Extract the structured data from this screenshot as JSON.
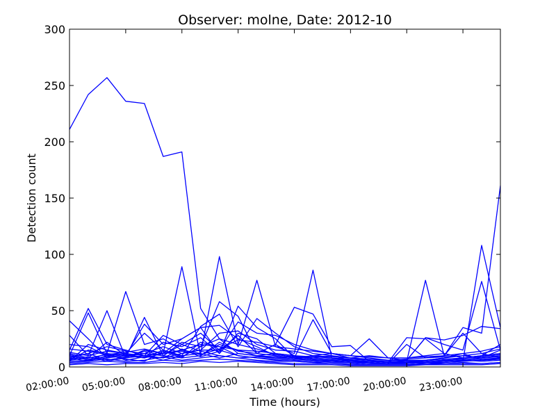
{
  "chart_data": {
    "type": "line",
    "title": "Observer: molne, Date: 2012-10",
    "xlabel": "Time (hours)",
    "ylabel": "Detection count",
    "ylim": [
      0,
      300
    ],
    "xlim": [
      2,
      25
    ],
    "y_ticks": [
      {
        "value": 0,
        "label": "0"
      },
      {
        "value": 50,
        "label": "50"
      },
      {
        "value": 100,
        "label": "100"
      },
      {
        "value": 150,
        "label": "150"
      },
      {
        "value": 200,
        "label": "200"
      },
      {
        "value": 250,
        "label": "250"
      },
      {
        "value": 300,
        "label": "300"
      }
    ],
    "x_ticks": [
      {
        "value": 2,
        "label": "02:00:00"
      },
      {
        "value": 5,
        "label": "05:00:00"
      },
      {
        "value": 8,
        "label": "08:00:00"
      },
      {
        "value": 11,
        "label": "11:00:00"
      },
      {
        "value": 14,
        "label": "14:00:00"
      },
      {
        "value": 17,
        "label": "17:00:00"
      },
      {
        "value": 20,
        "label": "20:00:00"
      },
      {
        "value": 23,
        "label": "23:00:00"
      }
    ],
    "x": [
      2,
      3,
      4,
      5,
      6,
      7,
      8,
      9,
      10,
      11,
      12,
      13,
      14,
      15,
      16,
      17,
      18,
      19,
      20,
      21,
      22,
      23,
      24,
      25
    ],
    "line_color": "#0000ff",
    "grid": false,
    "series": [
      {
        "values": [
          211,
          242,
          257,
          236,
          234,
          187,
          191,
          52,
          25,
          12,
          10,
          8,
          9,
          7,
          6,
          5,
          5,
          4,
          5,
          4,
          5,
          8,
          10,
          12
        ]
      },
      {
        "values": [
          8,
          5,
          10,
          12,
          8,
          12,
          89,
          10,
          20,
          15,
          10,
          12,
          8,
          6,
          5,
          4,
          3,
          3,
          4,
          3,
          4,
          5,
          108,
          35
        ]
      },
      {
        "values": [
          10,
          48,
          12,
          67,
          20,
          25,
          15,
          12,
          98,
          20,
          77,
          18,
          12,
          86,
          8,
          6,
          5,
          4,
          5,
          77,
          10,
          35,
          30,
          161
        ]
      },
      {
        "values": [
          28,
          10,
          50,
          8,
          44,
          10,
          22,
          18,
          58,
          45,
          12,
          20,
          53,
          47,
          18,
          19,
          5,
          4,
          6,
          26,
          24,
          28,
          36,
          34
        ]
      },
      {
        "values": [
          41,
          25,
          8,
          10,
          38,
          20,
          25,
          35,
          12,
          54,
          35,
          25,
          8,
          42,
          12,
          10,
          25,
          8,
          6,
          26,
          20,
          15,
          76,
          15
        ]
      },
      {
        "values": [
          15,
          52,
          20,
          15,
          10,
          28,
          20,
          30,
          15,
          40,
          30,
          28,
          20,
          15,
          12,
          10,
          8,
          6,
          6,
          6,
          8,
          10,
          8,
          15
        ]
      },
      {
        "values": [
          5,
          20,
          15,
          12,
          30,
          15,
          10,
          36,
          47,
          18,
          43,
          30,
          18,
          12,
          10,
          8,
          6,
          4,
          26,
          25,
          12,
          8,
          10,
          20
        ]
      },
      {
        "values": [
          20,
          18,
          10,
          8,
          15,
          12,
          25,
          35,
          37,
          25,
          18,
          10,
          8,
          10,
          8,
          5,
          4,
          3,
          20,
          8,
          10,
          30,
          12,
          8
        ]
      },
      {
        "values": [
          12,
          8,
          22,
          10,
          12,
          18,
          12,
          15,
          30,
          32,
          20,
          15,
          14,
          10,
          12,
          8,
          10,
          8,
          8,
          10,
          12,
          8,
          10,
          12
        ]
      },
      {
        "values": [
          6,
          15,
          12,
          10,
          8,
          22,
          18,
          26,
          12,
          30,
          25,
          12,
          10,
          8,
          10,
          6,
          5,
          4,
          4,
          6,
          8,
          12,
          6,
          8
        ]
      },
      {
        "values": [
          5,
          6,
          8,
          15,
          10,
          8,
          12,
          15,
          15,
          10,
          8,
          6,
          5,
          4,
          5,
          4,
          3,
          3,
          3,
          4,
          5,
          6,
          5,
          6
        ]
      },
      {
        "values": [
          9,
          12,
          6,
          9,
          14,
          10,
          8,
          10,
          22,
          14,
          12,
          10,
          8,
          6,
          6,
          5,
          5,
          4,
          4,
          5,
          6,
          5,
          6,
          7
        ]
      },
      {
        "values": [
          4,
          5,
          7,
          5,
          6,
          9,
          6,
          8,
          10,
          8,
          6,
          5,
          5,
          4,
          3,
          3,
          2,
          2,
          2,
          3,
          3,
          4,
          3,
          4
        ]
      },
      {
        "values": [
          13,
          10,
          14,
          12,
          10,
          12,
          15,
          20,
          18,
          15,
          14,
          12,
          10,
          9,
          8,
          7,
          6,
          5,
          5,
          6,
          7,
          8,
          9,
          11
        ]
      },
      {
        "values": [
          7,
          9,
          5,
          8,
          10,
          6,
          10,
          12,
          8,
          12,
          10,
          9,
          7,
          6,
          5,
          4,
          4,
          3,
          3,
          4,
          5,
          6,
          7,
          8
        ]
      },
      {
        "values": [
          3,
          4,
          5,
          4,
          4,
          6,
          5,
          6,
          7,
          6,
          5,
          4,
          3,
          3,
          3,
          2,
          2,
          2,
          2,
          2,
          3,
          3,
          3,
          4
        ]
      },
      {
        "values": [
          11,
          7,
          9,
          11,
          8,
          15,
          9,
          18,
          25,
          20,
          16,
          11,
          9,
          8,
          7,
          6,
          5,
          4,
          4,
          5,
          6,
          7,
          8,
          9
        ]
      },
      {
        "values": [
          8,
          12,
          18,
          14,
          12,
          10,
          20,
          14,
          10,
          8,
          9,
          8,
          7,
          10,
          9,
          8,
          7,
          6,
          7,
          8,
          9,
          10,
          12,
          16
        ]
      },
      {
        "values": [
          2,
          3,
          2,
          3,
          3,
          4,
          3,
          5,
          4,
          5,
          4,
          3,
          2,
          2,
          2,
          1,
          1,
          1,
          1,
          2,
          2,
          2,
          2,
          3
        ]
      },
      {
        "values": [
          16,
          14,
          11,
          13,
          16,
          12,
          14,
          11,
          16,
          24,
          22,
          18,
          16,
          14,
          12,
          10,
          9,
          8,
          8,
          9,
          10,
          12,
          14,
          18
        ]
      },
      {
        "values": [
          6,
          8,
          11,
          7,
          5,
          14,
          8,
          22,
          18,
          10,
          8,
          7,
          6,
          5,
          4,
          4,
          3,
          3,
          3,
          4,
          4,
          5,
          6,
          7
        ]
      },
      {
        "values": [
          10,
          6,
          12,
          6,
          9,
          8,
          16,
          9,
          14,
          28,
          12,
          20,
          10,
          7,
          6,
          5,
          4,
          3,
          4,
          5,
          6,
          7,
          8,
          10
        ]
      }
    ]
  }
}
